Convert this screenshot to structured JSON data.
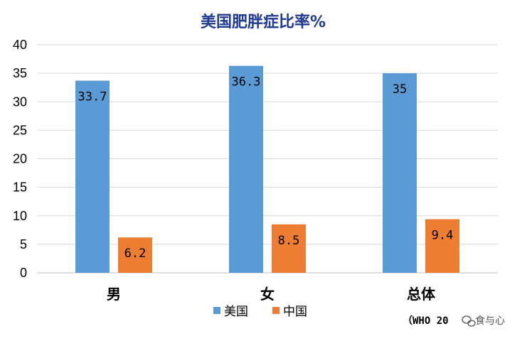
{
  "chart_data": {
    "type": "bar",
    "title": "美国肥胖症比率%",
    "categories": [
      "男",
      "女",
      "总体"
    ],
    "series": [
      {
        "name": "美国",
        "color": "#5b9bd5",
        "values": [
          33.7,
          36.3,
          35
        ]
      },
      {
        "name": "中国",
        "color": "#ed7d31",
        "values": [
          6.2,
          8.5,
          9.4
        ]
      }
    ],
    "data_labels": [
      [
        "33.7",
        "36.3",
        "35"
      ],
      [
        "6.2",
        "8.5",
        "9.4"
      ]
    ],
    "ylim": [
      0,
      40
    ],
    "yticks": [
      0,
      5,
      10,
      15,
      20,
      25,
      30,
      35,
      40
    ],
    "grid": true,
    "legend_position": "bottom",
    "source": "（WHO 20",
    "title_color": "#1f3a93"
  },
  "watermark": {
    "text": "食与心",
    "icon": "wechat-icon"
  }
}
